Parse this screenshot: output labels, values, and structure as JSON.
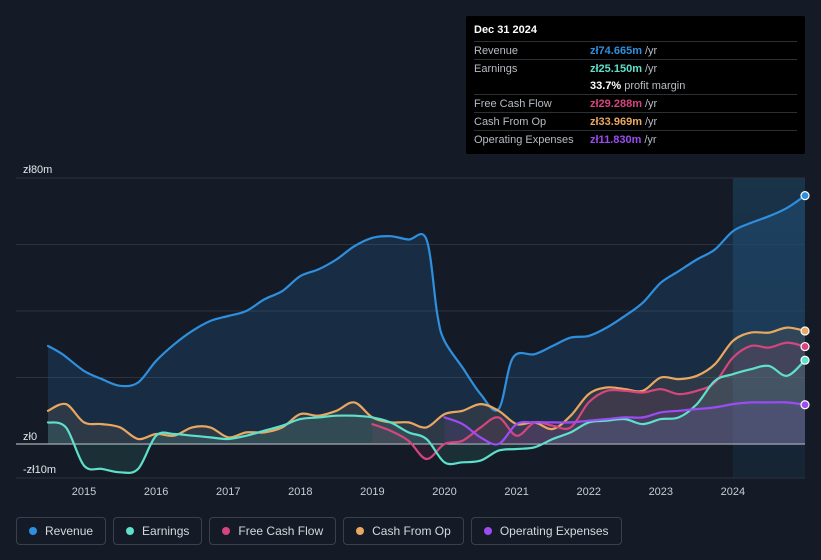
{
  "tooltip": {
    "date": "Dec 31 2024",
    "rows": [
      {
        "label": "Revenue",
        "value": "zł74.665m",
        "unit": "/yr",
        "color": "#2f8fdf"
      },
      {
        "label": "Earnings",
        "value": "zł25.150m",
        "unit": "/yr",
        "color": "#5ee0cc"
      },
      {
        "label": "",
        "value": "33.7%",
        "unit": "profit margin",
        "color": "#ffffff"
      },
      {
        "label": "Free Cash Flow",
        "value": "zł29.288m",
        "unit": "/yr",
        "color": "#d6457e"
      },
      {
        "label": "Cash From Op",
        "value": "zł33.969m",
        "unit": "/yr",
        "color": "#e9a861"
      },
      {
        "label": "Operating Expenses",
        "value": "zł11.830m",
        "unit": "/yr",
        "color": "#9c4df2"
      }
    ]
  },
  "legend": [
    {
      "label": "Revenue",
      "color": "#2f8fdf"
    },
    {
      "label": "Earnings",
      "color": "#5ee0cc"
    },
    {
      "label": "Free Cash Flow",
      "color": "#d6457e"
    },
    {
      "label": "Cash From Op",
      "color": "#e9a861"
    },
    {
      "label": "Operating Expenses",
      "color": "#9c4df2"
    }
  ],
  "chart_data": {
    "type": "area",
    "title": "",
    "y_tick_labels": [
      "zł80m",
      "zł0",
      "-zł10m"
    ],
    "y_ticks": [
      80,
      0,
      -10
    ],
    "ylim": [
      -10,
      80
    ],
    "xlim": [
      2014.5,
      2025.0
    ],
    "x_tick_labels": [
      "2015",
      "2016",
      "2017",
      "2018",
      "2019",
      "2020",
      "2021",
      "2022",
      "2023",
      "2024"
    ],
    "x_ticks": [
      2015,
      2016,
      2017,
      2018,
      2019,
      2020,
      2021,
      2022,
      2023,
      2024
    ],
    "highlight_start": 2024.0,
    "series": [
      {
        "name": "Revenue",
        "color": "#2f8fdf",
        "points": [
          [
            2014.5,
            29.5
          ],
          [
            2014.7,
            27
          ],
          [
            2015.0,
            22
          ],
          [
            2015.25,
            19.5
          ],
          [
            2015.5,
            17.5
          ],
          [
            2015.75,
            18.5
          ],
          [
            2016.0,
            25
          ],
          [
            2016.25,
            30
          ],
          [
            2016.5,
            34
          ],
          [
            2016.75,
            37
          ],
          [
            2017.0,
            38.5
          ],
          [
            2017.25,
            40
          ],
          [
            2017.5,
            43.5
          ],
          [
            2017.75,
            46
          ],
          [
            2018.0,
            50.5
          ],
          [
            2018.25,
            52.5
          ],
          [
            2018.5,
            55.5
          ],
          [
            2018.75,
            59.5
          ],
          [
            2019.0,
            62
          ],
          [
            2019.25,
            62.5
          ],
          [
            2019.5,
            61.5
          ],
          [
            2019.75,
            61.5
          ],
          [
            2019.9,
            39
          ],
          [
            2020.0,
            31
          ],
          [
            2020.25,
            23
          ],
          [
            2020.5,
            15
          ],
          [
            2020.75,
            10.5
          ],
          [
            2020.95,
            26
          ],
          [
            2021.25,
            27
          ],
          [
            2021.5,
            29.5
          ],
          [
            2021.75,
            32
          ],
          [
            2022.0,
            32.5
          ],
          [
            2022.25,
            35
          ],
          [
            2022.5,
            38.5
          ],
          [
            2022.75,
            42.5
          ],
          [
            2023.0,
            48.5
          ],
          [
            2023.25,
            52
          ],
          [
            2023.5,
            55.5
          ],
          [
            2023.75,
            58.5
          ],
          [
            2024.0,
            64
          ],
          [
            2024.25,
            66.5
          ],
          [
            2024.5,
            68.5
          ],
          [
            2024.75,
            71
          ],
          [
            2025.0,
            74.7
          ]
        ]
      },
      {
        "name": "Cash From Op",
        "color": "#e9a861",
        "points": [
          [
            2014.5,
            10
          ],
          [
            2014.75,
            12
          ],
          [
            2015.0,
            6.5
          ],
          [
            2015.25,
            6
          ],
          [
            2015.5,
            5
          ],
          [
            2015.75,
            1.5
          ],
          [
            2016.0,
            3
          ],
          [
            2016.25,
            2.5
          ],
          [
            2016.5,
            5
          ],
          [
            2016.75,
            5
          ],
          [
            2017.0,
            2
          ],
          [
            2017.25,
            3.5
          ],
          [
            2017.5,
            3.5
          ],
          [
            2017.75,
            5
          ],
          [
            2018.0,
            9
          ],
          [
            2018.25,
            8.5
          ],
          [
            2018.5,
            10
          ],
          [
            2018.75,
            12.5
          ],
          [
            2019.0,
            8
          ],
          [
            2019.25,
            6.5
          ],
          [
            2019.5,
            6.5
          ],
          [
            2019.75,
            5
          ],
          [
            2020.0,
            9
          ],
          [
            2020.25,
            10
          ],
          [
            2020.5,
            12
          ],
          [
            2020.75,
            10
          ],
          [
            2021.0,
            6
          ],
          [
            2021.25,
            6.5
          ],
          [
            2021.5,
            4.5
          ],
          [
            2021.75,
            8.5
          ],
          [
            2022.0,
            15
          ],
          [
            2022.25,
            17
          ],
          [
            2022.5,
            16.5
          ],
          [
            2022.75,
            16
          ],
          [
            2023.0,
            20
          ],
          [
            2023.25,
            19.5
          ],
          [
            2023.5,
            20.5
          ],
          [
            2023.75,
            24
          ],
          [
            2024.0,
            31
          ],
          [
            2024.25,
            33.5
          ],
          [
            2024.5,
            33.5
          ],
          [
            2024.75,
            35
          ],
          [
            2025.0,
            34
          ]
        ]
      },
      {
        "name": "Free Cash Flow",
        "color": "#d6457e",
        "points": [
          [
            2019.0,
            6
          ],
          [
            2019.25,
            4
          ],
          [
            2019.5,
            1
          ],
          [
            2019.75,
            -4.5
          ],
          [
            2020.0,
            0
          ],
          [
            2020.25,
            1
          ],
          [
            2020.5,
            5
          ],
          [
            2020.75,
            8
          ],
          [
            2021.0,
            2.5
          ],
          [
            2021.25,
            6.5
          ],
          [
            2021.5,
            5.5
          ],
          [
            2021.75,
            5
          ],
          [
            2022.0,
            12.5
          ],
          [
            2022.25,
            16
          ],
          [
            2022.5,
            16
          ],
          [
            2022.75,
            15.5
          ],
          [
            2023.0,
            16.5
          ],
          [
            2023.25,
            15
          ],
          [
            2023.5,
            16
          ],
          [
            2023.75,
            18.5
          ],
          [
            2024.0,
            26
          ],
          [
            2024.25,
            29.5
          ],
          [
            2024.5,
            29
          ],
          [
            2024.75,
            30.5
          ],
          [
            2025.0,
            29.3
          ]
        ]
      },
      {
        "name": "Earnings",
        "color": "#5ee0cc",
        "points": [
          [
            2014.5,
            6.5
          ],
          [
            2014.75,
            5
          ],
          [
            2015.0,
            -6.5
          ],
          [
            2015.25,
            -7.5
          ],
          [
            2015.5,
            -8.5
          ],
          [
            2015.75,
            -7.5
          ],
          [
            2016.0,
            2.5
          ],
          [
            2016.25,
            3
          ],
          [
            2016.5,
            2.5
          ],
          [
            2016.75,
            2
          ],
          [
            2017.0,
            1.5
          ],
          [
            2017.25,
            2.5
          ],
          [
            2017.5,
            4
          ],
          [
            2017.75,
            5.5
          ],
          [
            2018.0,
            7.5
          ],
          [
            2018.25,
            8
          ],
          [
            2018.5,
            8.5
          ],
          [
            2018.75,
            8.5
          ],
          [
            2019.0,
            8
          ],
          [
            2019.25,
            6.5
          ],
          [
            2019.5,
            3.5
          ],
          [
            2019.75,
            1.5
          ],
          [
            2020.0,
            -5.5
          ],
          [
            2020.25,
            -5.5
          ],
          [
            2020.5,
            -5
          ],
          [
            2020.75,
            -2
          ],
          [
            2021.0,
            -1.5
          ],
          [
            2021.25,
            -1
          ],
          [
            2021.5,
            1.5
          ],
          [
            2021.75,
            3.5
          ],
          [
            2022.0,
            6.5
          ],
          [
            2022.25,
            7
          ],
          [
            2022.5,
            7.5
          ],
          [
            2022.75,
            6
          ],
          [
            2023.0,
            7.5
          ],
          [
            2023.25,
            8
          ],
          [
            2023.5,
            12
          ],
          [
            2023.75,
            19
          ],
          [
            2024.0,
            21
          ],
          [
            2024.25,
            22.5
          ],
          [
            2024.5,
            23.5
          ],
          [
            2024.75,
            20.5
          ],
          [
            2025.0,
            25.2
          ]
        ]
      },
      {
        "name": "Operating Expenses",
        "color": "#9c4df2",
        "points": [
          [
            2020.0,
            8
          ],
          [
            2020.25,
            6
          ],
          [
            2020.5,
            2
          ],
          [
            2020.75,
            0
          ],
          [
            2021.0,
            6
          ],
          [
            2021.25,
            6.5
          ],
          [
            2021.5,
            6.5
          ],
          [
            2021.75,
            6.5
          ],
          [
            2022.0,
            7
          ],
          [
            2022.25,
            7.5
          ],
          [
            2022.5,
            8
          ],
          [
            2022.75,
            8
          ],
          [
            2023.0,
            9.5
          ],
          [
            2023.25,
            10
          ],
          [
            2023.5,
            10.5
          ],
          [
            2023.75,
            11
          ],
          [
            2024.0,
            12
          ],
          [
            2024.25,
            12.5
          ],
          [
            2024.5,
            12.5
          ],
          [
            2024.75,
            12.5
          ],
          [
            2025.0,
            11.8
          ]
        ]
      }
    ]
  }
}
